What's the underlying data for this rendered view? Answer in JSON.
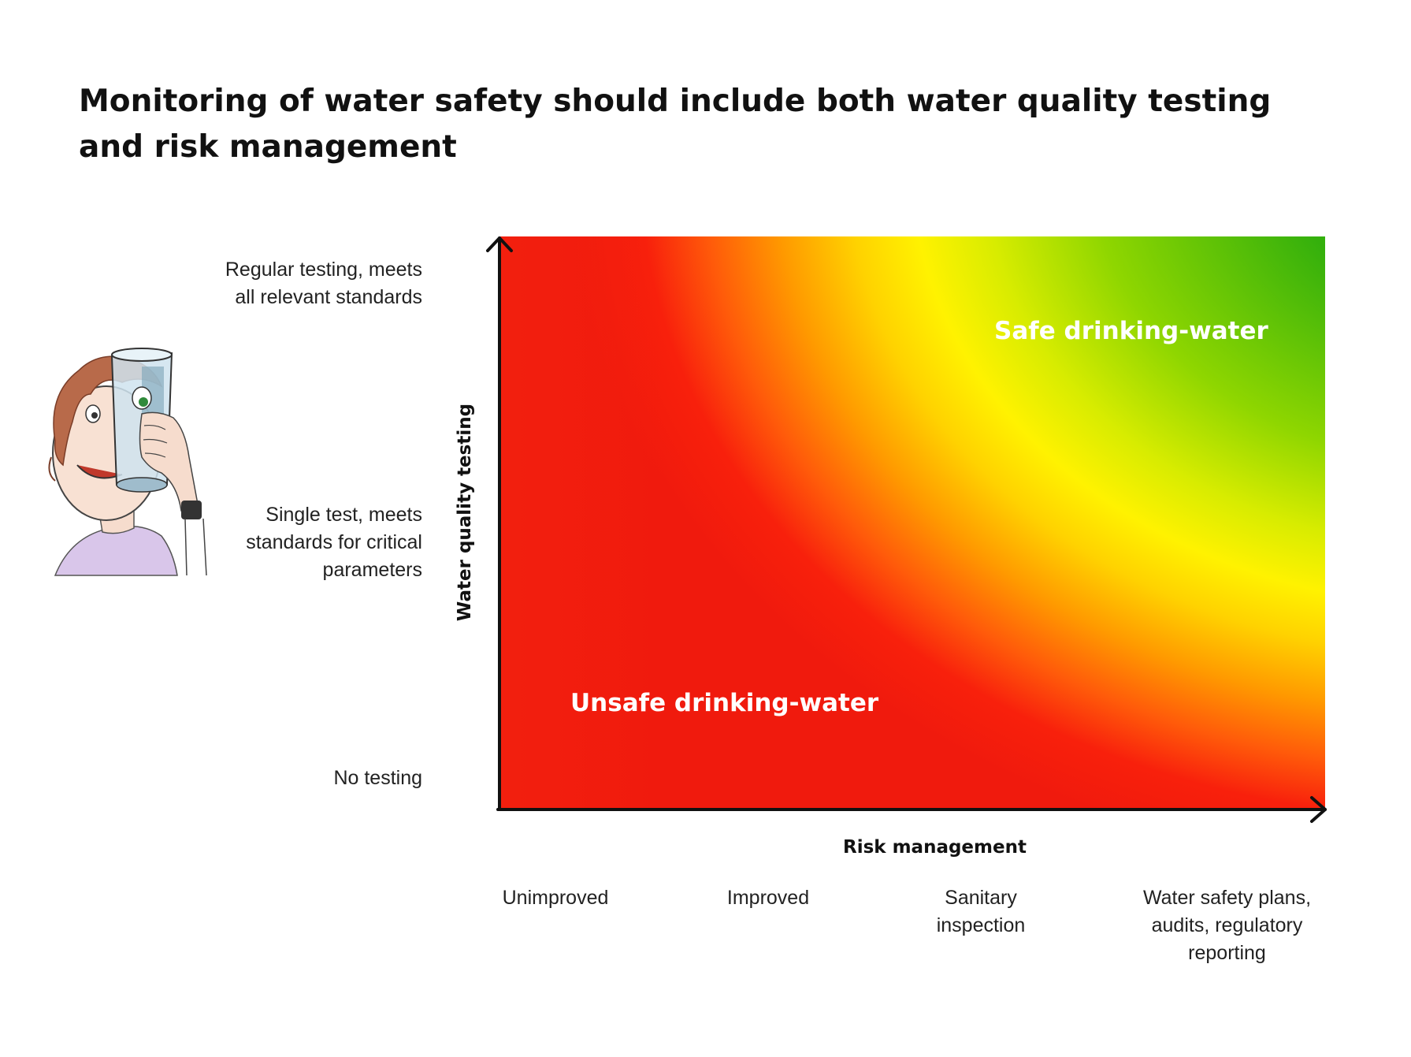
{
  "title": "Monitoring of water safety should include both water quality testing and risk management",
  "y_axis": {
    "title": "Water quality testing",
    "levels": [
      "Regular testing, meets all relevant standards",
      "Single test, meets standards for critical parameters",
      "No testing"
    ]
  },
  "x_axis": {
    "title": "Risk management",
    "levels": [
      "Unimproved",
      "Improved",
      "Sanitary inspection",
      "Water safety plans, audits, regulatory reporting"
    ]
  },
  "regions": {
    "safe": "Safe drinking-water",
    "unsafe": "Unsafe drinking-water"
  },
  "colors": {
    "safe": "#1aa10e",
    "middle": "#fff200",
    "unsafe": "#f01a0d",
    "axis": "#111111"
  },
  "illustration": "person-drinking-water-icon"
}
